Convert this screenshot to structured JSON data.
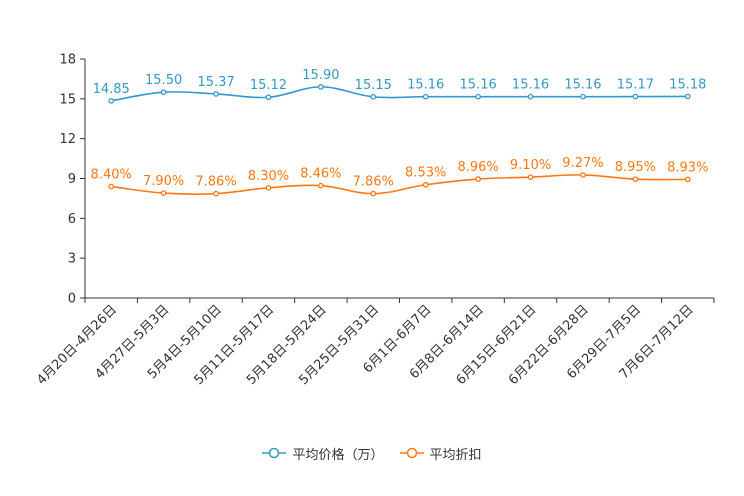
{
  "chart_data": {
    "type": "line",
    "title": "",
    "xlabel": "",
    "ylabel": "",
    "ylim": [
      0,
      18
    ],
    "yticks": [
      "0",
      "3",
      "6",
      "9",
      "12",
      "15",
      "18"
    ],
    "categories": [
      "4月20日-4月26日",
      "4月27日-5月3日",
      "5月4日-5月10日",
      "5月11日-5月17日",
      "5月18日-5月24日",
      "5月25日-5月31日",
      "6月1日-6月7日",
      "6月8日-6月14日",
      "6月15日-6月21日",
      "6月22日-6月28日",
      "6月29日-7月5日",
      "7月6日-7月12日"
    ],
    "series": [
      {
        "name": "平均价格（万）",
        "color": "#3399cc",
        "values": [
          14.85,
          15.5,
          15.37,
          15.12,
          15.9,
          15.15,
          15.16,
          15.16,
          15.16,
          15.16,
          15.17,
          15.18
        ],
        "labels": [
          "14.85",
          "15.50",
          "15.37",
          "15.12",
          "15.90",
          "15.15",
          "15.16",
          "15.16",
          "15.16",
          "15.16",
          "15.17",
          "15.18"
        ]
      },
      {
        "name": "平均折扣",
        "color": "#ff7711",
        "values": [
          8.4,
          7.9,
          7.86,
          8.3,
          8.46,
          7.86,
          8.53,
          8.96,
          9.1,
          9.27,
          8.95,
          8.93
        ],
        "labels": [
          "8.40%",
          "7.90%",
          "7.86%",
          "8.30%",
          "8.46%",
          "7.86%",
          "8.53%",
          "8.96%",
          "9.10%",
          "9.27%",
          "8.95%",
          "8.93%"
        ]
      }
    ],
    "legend_position": "bottom"
  }
}
